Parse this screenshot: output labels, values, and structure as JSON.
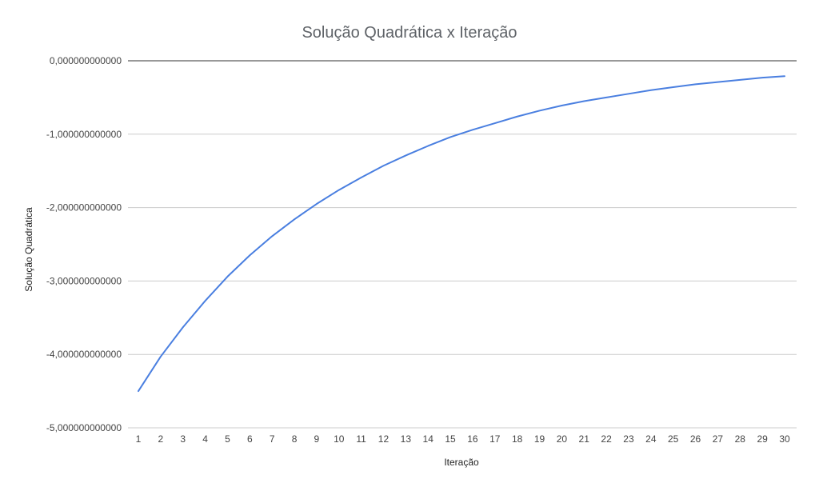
{
  "chart_data": {
    "type": "line",
    "title": "Solução Quadrática x Iteração",
    "xlabel": "Iteração",
    "ylabel": "Solução Quadrática",
    "x": [
      1,
      2,
      3,
      4,
      5,
      6,
      7,
      8,
      9,
      10,
      11,
      12,
      13,
      14,
      15,
      16,
      17,
      18,
      19,
      20,
      21,
      22,
      23,
      24,
      25,
      26,
      27,
      28,
      29,
      30
    ],
    "series": [
      {
        "values": [
          -4.5,
          -4.03,
          -3.63,
          -3.27,
          -2.94,
          -2.65,
          -2.39,
          -2.16,
          -1.95,
          -1.76,
          -1.59,
          -1.43,
          -1.29,
          -1.16,
          -1.04,
          -0.94,
          -0.85,
          -0.76,
          -0.68,
          -0.61,
          -0.55,
          -0.5,
          -0.45,
          -0.4,
          -0.36,
          -0.32,
          -0.29,
          -0.26,
          -0.23,
          -0.21
        ],
        "color": "#4a7fe0"
      }
    ],
    "ylim": [
      -5,
      0
    ],
    "yticks": [
      0,
      -1,
      -2,
      -3,
      -4,
      -5
    ],
    "ytick_labels": [
      "0,000000000000",
      "-1,000000000000",
      "-2,000000000000",
      "-3,000000000000",
      "-4,000000000000",
      "-5,000000000000"
    ],
    "grid": true,
    "legend": "none",
    "colors": {
      "series": "#4a7fe0",
      "grid": "#cccccc",
      "zero_line": "#333333",
      "title": "#5f6368"
    }
  }
}
